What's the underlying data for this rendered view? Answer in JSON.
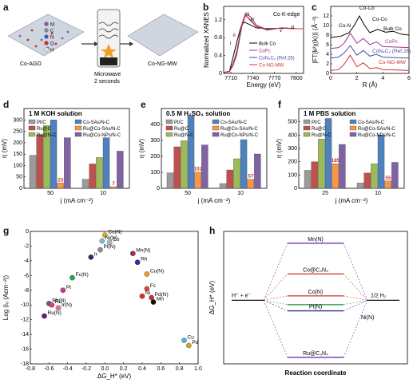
{
  "panels": {
    "a": {
      "label": "a",
      "left_caption": "Co-AGO",
      "right_caption": "Co-NG-MW",
      "center_caption_1": "Microwave",
      "center_caption_2": "2 seconds",
      "legend": [
        "M",
        "C",
        "N",
        "O",
        "H"
      ],
      "legend_colors": [
        "#7a5fa8",
        "#8a8a8a",
        "#3a5bbf",
        "#d03030",
        "#e8e8e8"
      ]
    },
    "b": {
      "label": "b",
      "title": "Co K-edge",
      "xlabel": "Energy (eV)",
      "ylabel": "Normalized XANES",
      "peaks": [
        "i",
        "ii",
        "iii",
        "iv",
        "v",
        "vi"
      ]
    },
    "c": {
      "label": "c",
      "xlabel": "R (Å)",
      "ylabel": "|FT(k²χ(k))| (Å⁻³)",
      "annotations": [
        "Co-N",
        "Co-Co",
        "Co-Co",
        "Bulk Co",
        "CoPc",
        "CoN₄C₄ (Ref.26)",
        "Co-NG-MW"
      ]
    },
    "d": {
      "label": "d",
      "title": "1 M KOH solution",
      "xlabel": "j (mA cm⁻²)",
      "ylabel": "η (mV)"
    },
    "e": {
      "label": "e",
      "title": "0.5 M H₂SO₄ solution",
      "xlabel": "j (mA cm⁻²)",
      "ylabel": "η (mV)"
    },
    "f": {
      "label": "f",
      "title": "1 M PBS solution",
      "xlabel": "j (mA cm⁻²)",
      "ylabel": "η (mV)"
    },
    "g": {
      "label": "g",
      "xlabel": "ΔG_H* (eV)",
      "ylabel": "Log (i₀ (Acm⁻²))"
    },
    "h": {
      "label": "h",
      "xlabel": "Reaction coordinate",
      "ylabel": "ΔG_H* (eV)",
      "left": "H⁺ + e⁻",
      "right": "1/2 H₂",
      "levels": [
        "Mn(N)",
        "Co@C₃N₄",
        "Co(N)",
        "Pt(N)",
        "Ni(N)",
        "Ru@C₃N₄"
      ]
    }
  },
  "bar_legend": [
    "Pt/C",
    "Ru@C",
    "Ru@N-C",
    "Co-SAs/N-C",
    "Ru@Co-SAs/N-C",
    "Ru@Co-NPs/N-C"
  ],
  "bar_colors": [
    "#9b9b9b",
    "#c0504d",
    "#9bbb59",
    "#4f81bd",
    "#f79646",
    "#8064a2"
  ],
  "chart_data": [
    {
      "type": "line",
      "panel": "b",
      "title": "Co K-edge",
      "xlabel": "Energy (eV)",
      "ylabel": "Normalized XANES",
      "xlim": [
        7700,
        7810
      ],
      "ylim": [
        0,
        1.5
      ],
      "x_ticks": [
        7710,
        7740,
        7770,
        7800
      ],
      "y_ticks": [
        0,
        0.4,
        0.8,
        1.2
      ],
      "series": [
        {
          "name": "Bulk Co",
          "color": "#000000",
          "x": [
            7700,
            7708,
            7712,
            7718,
            7724,
            7728,
            7735,
            7745,
            7760,
            7780,
            7800,
            7810
          ],
          "y": [
            0.02,
            0.05,
            0.3,
            0.7,
            1.05,
            1.15,
            1.1,
            1.02,
            1.0,
            1.01,
            1.0,
            1.0
          ]
        },
        {
          "name": "CoPc",
          "color": "#a0338f",
          "x": [
            7700,
            7708,
            7713,
            7718,
            7725,
            7730,
            7738,
            7745,
            7760,
            7780,
            7800,
            7810
          ],
          "y": [
            0.02,
            0.04,
            0.2,
            0.45,
            1.1,
            1.35,
            1.25,
            1.08,
            0.98,
            1.02,
            1.0,
            1.0
          ]
        },
        {
          "name": "CoN₄C₄ (Ref.26)",
          "color": "#4a4aa6",
          "x": [
            7700,
            7708,
            7713,
            7718,
            7725,
            7730,
            7737,
            7745,
            7760,
            7780,
            7800,
            7810
          ],
          "y": [
            0.02,
            0.04,
            0.18,
            0.42,
            1.05,
            1.3,
            1.2,
            1.05,
            0.98,
            1.02,
            1.0,
            1.0
          ]
        },
        {
          "name": "Co-NG-MW",
          "color": "#d03030",
          "x": [
            7700,
            7708,
            7713,
            7718,
            7725,
            7730,
            7737,
            7745,
            7760,
            7780,
            7800,
            7810
          ],
          "y": [
            0.02,
            0.05,
            0.22,
            0.5,
            1.1,
            1.3,
            1.18,
            1.05,
            0.97,
            1.02,
            1.0,
            1.0
          ]
        }
      ]
    },
    {
      "type": "line",
      "panel": "c",
      "xlabel": "R (Å)",
      "ylabel": "|FT(k²χ(k))| (Å⁻³)",
      "xlim": [
        0,
        6
      ],
      "ylim": [
        0,
        14
      ],
      "x_ticks": [
        0,
        2,
        4,
        6
      ],
      "y_ticks": [
        0,
        2,
        4,
        6,
        8,
        10,
        12
      ],
      "series": [
        {
          "name": "Bulk Co",
          "color": "#000000",
          "x": [
            0,
            0.8,
            1.4,
            1.8,
            2.2,
            2.6,
            3.0,
            3.6,
            4.2,
            4.8,
            5.4,
            6
          ],
          "y": [
            7.5,
            7.8,
            8.5,
            10,
            12,
            10,
            8.5,
            9.2,
            8.6,
            8.8,
            8.2,
            8.0
          ]
        },
        {
          "name": "CoPc",
          "color": "#a0338f",
          "x": [
            0,
            0.6,
            1.0,
            1.5,
            2.0,
            2.5,
            3.0,
            3.5,
            4.0,
            5.0,
            6
          ],
          "y": [
            5.2,
            5.4,
            6.2,
            8.4,
            6.3,
            7.3,
            6.0,
            6.6,
            5.6,
            5.5,
            5.4
          ]
        },
        {
          "name": "CoN₄C₄ (Ref.26)",
          "color": "#4a4aa6",
          "x": [
            0,
            0.6,
            1.0,
            1.5,
            2.0,
            2.5,
            3.0,
            3.5,
            4.0,
            5.0,
            6
          ],
          "y": [
            3.2,
            3.4,
            4.2,
            5.8,
            3.8,
            4.8,
            3.6,
            4.0,
            3.4,
            3.3,
            3.2
          ]
        },
        {
          "name": "Co-NG-MW",
          "color": "#d03030",
          "x": [
            0,
            0.6,
            1.0,
            1.5,
            2.0,
            2.5,
            3.0,
            3.5,
            4.0,
            5.0,
            6
          ],
          "y": [
            0.6,
            0.8,
            1.8,
            3.8,
            1.4,
            2.2,
            1.0,
            1.2,
            0.8,
            0.7,
            0.6
          ]
        }
      ]
    },
    {
      "type": "bar",
      "panel": "d",
      "title": "1 M KOH solution",
      "xlabel": "j (mA cm⁻²)",
      "ylabel": "η (mV)",
      "categories": [
        "50",
        "10"
      ],
      "ylim": [
        0,
        350
      ],
      "y_ticks": [
        0,
        50,
        100,
        150,
        200,
        250,
        300
      ],
      "series": [
        {
          "name": "Pt/C",
          "values": [
            145,
            40
          ]
        },
        {
          "name": "Ru@C",
          "values": [
            235,
            107
          ]
        },
        {
          "name": "Ru@N-C",
          "values": [
            275,
            135
          ]
        },
        {
          "name": "Co-SAs/N-C",
          "values": [
            300,
            222
          ]
        },
        {
          "name": "Ru@Co-SAs/N-C",
          "values": [
            23,
            7
          ]
        },
        {
          "name": "Ru@Co-NPs/N-C",
          "values": [
            222,
            163
          ]
        }
      ],
      "data_labels": [
        {
          "series": "Ru@Co-SAs/N-C",
          "values": [
            "23",
            "7"
          ]
        }
      ]
    },
    {
      "type": "bar",
      "panel": "e",
      "title": "0.5 M H₂SO₄ solution",
      "xlabel": "j (mA cm⁻²)",
      "ylabel": "η (mV)",
      "categories": [
        "50",
        "10"
      ],
      "ylim": [
        0,
        500
      ],
      "y_ticks": [
        0,
        100,
        200,
        300,
        400
      ],
      "series": [
        {
          "name": "Pt/C",
          "values": [
            97,
            30
          ]
        },
        {
          "name": "Ru@C",
          "values": [
            260,
            115
          ]
        },
        {
          "name": "Ru@N-C",
          "values": [
            298,
            185
          ]
        },
        {
          "name": "Co-SAs/N-C",
          "values": [
            455,
            305
          ]
        },
        {
          "name": "Ru@Co-SAs/N-C",
          "values": [
            102,
            57
          ]
        },
        {
          "name": "Ru@Co-NPs/N-C",
          "values": [
            272,
            215
          ]
        }
      ],
      "data_labels": [
        {
          "series": "Ru@Co-SAs/N-C",
          "values": [
            "102",
            "57"
          ]
        }
      ]
    },
    {
      "type": "bar",
      "panel": "f",
      "title": "1 M PBS solution",
      "xlabel": "j (mA cm⁻²)",
      "ylabel": "η (mV)",
      "categories": [
        "25",
        "10"
      ],
      "ylim": [
        0,
        600
      ],
      "y_ticks": [
        0,
        100,
        200,
        300,
        400,
        500
      ],
      "series": [
        {
          "name": "Pt/C",
          "values": [
            135,
            40
          ]
        },
        {
          "name": "Ru@C",
          "values": [
            200,
            115
          ]
        },
        {
          "name": "Ru@N-C",
          "values": [
            370,
            185
          ]
        },
        {
          "name": "Co-SAs/N-C",
          "values": [
            525,
            400
          ]
        },
        {
          "name": "Ru@Co-SAs/N-C",
          "values": [
            185,
            55
          ]
        },
        {
          "name": "Ru@Co-NPs/N-C",
          "values": [
            330,
            195
          ]
        }
      ],
      "data_labels": [
        {
          "series": "Ru@Co-SAs/N-C",
          "values": [
            "185",
            "55"
          ]
        }
      ]
    },
    {
      "type": "scatter",
      "panel": "g",
      "xlabel": "ΔG_H* (eV)",
      "ylabel": "Log (i₀ (Acm⁻²))",
      "xlim": [
        -0.8,
        1.0
      ],
      "ylim": [
        -18,
        0
      ],
      "x_ticks": [
        -0.8,
        -0.6,
        -0.4,
        -0.2,
        0.0,
        0.2,
        0.4,
        0.6,
        0.8,
        1.0
      ],
      "y_ticks": [
        -18,
        -16,
        -14,
        -12,
        -10,
        -8,
        -6,
        -4,
        -2,
        0
      ],
      "points": [
        {
          "label": "Co(N)",
          "x": 0.0,
          "y": -0.5,
          "color": "#d4b02a"
        },
        {
          "label": "Co",
          "x": 0.05,
          "y": -1.5,
          "color": "#b5b5b5"
        },
        {
          "label": "Ni(N)",
          "x": -0.03,
          "y": -1.3,
          "color": "#7dbad6"
        },
        {
          "label": "Pt(N)",
          "x": -0.05,
          "y": -2.5,
          "color": "#8f8f8f"
        },
        {
          "label": "Ir",
          "x": -0.15,
          "y": -3.5,
          "color": "#1f2f7a"
        },
        {
          "label": "Mn(N)",
          "x": 0.3,
          "y": -3.0,
          "color": "#a03040"
        },
        {
          "label": "Rh",
          "x": 0.35,
          "y": -4.2,
          "color": "#2f2f8f"
        },
        {
          "label": "Cu(N)",
          "x": 0.45,
          "y": -5.8,
          "color": "#e0a030"
        },
        {
          "label": "Fc(N)",
          "x": -0.35,
          "y": -6.3,
          "color": "#2f9f4f"
        },
        {
          "label": "Pt",
          "x": -0.45,
          "y": -8.0,
          "color": "#c04080"
        },
        {
          "label": "Fc",
          "x": 0.45,
          "y": -7.8,
          "color": "#e04040"
        },
        {
          "label": "Ni",
          "x": 0.4,
          "y": -8.8,
          "color": "#d03030"
        },
        {
          "label": "Pd(N)",
          "x": 0.5,
          "y": -9.0,
          "color": "#d03030"
        },
        {
          "label": "Mn",
          "x": 0.52,
          "y": -9.6,
          "color": "#101010"
        },
        {
          "label": "Rh(N)",
          "x": -0.6,
          "y": -9.8,
          "color": "#5a5aa0"
        },
        {
          "label": "Ru",
          "x": -0.57,
          "y": -10.0,
          "color": "#e04070"
        },
        {
          "label": "Ir(N)",
          "x": -0.5,
          "y": -10.4,
          "color": "#e07090"
        },
        {
          "label": "Ru(N)",
          "x": -0.65,
          "y": -11.5,
          "color": "#5a2080"
        },
        {
          "label": "Cu",
          "x": 0.85,
          "y": -14.8,
          "color": "#5ab0d0"
        },
        {
          "label": "Pd",
          "x": 0.9,
          "y": -15.5,
          "color": "#c8a830"
        }
      ]
    },
    {
      "type": "line",
      "panel": "h",
      "xlabel": "Reaction coordinate",
      "ylabel": "ΔG_H* (eV)",
      "levels": [
        {
          "name": "Mn(N)",
          "value": 0.65,
          "color": "#6a3aa8"
        },
        {
          "name": "Co@C₃N₄",
          "value": 0.3,
          "color": "#d04040"
        },
        {
          "name": "Co(N)",
          "value": 0.05,
          "color": "#d04040"
        },
        {
          "name": "Ni(N)",
          "value": -0.05,
          "color": "#2f9f4f"
        },
        {
          "name": "Pt(N)",
          "value": -0.12,
          "color": "#2f2f8f"
        },
        {
          "name": "Ru@C₃N₄",
          "value": -0.65,
          "color": "#6a3aa8"
        }
      ]
    }
  ]
}
